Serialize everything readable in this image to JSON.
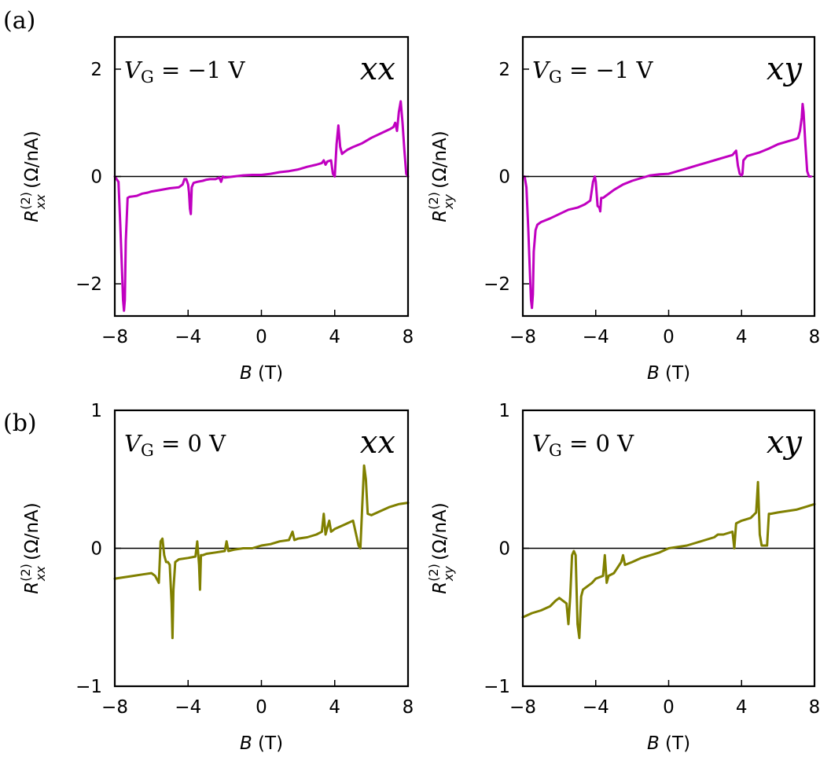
{
  "panel_labels": [
    "(a)",
    "(b)"
  ],
  "chart_data": [
    {
      "type": "line",
      "id": "a-xx",
      "row": "a",
      "component": "xx",
      "gate_label": "V_G = −1 V",
      "gate_symbol": "V",
      "gate_sub": "G",
      "gate_value": " = −1 V",
      "xlabel_var": "B",
      "xlabel_unit": " (T)",
      "ylabel_var": "R",
      "ylabel_sup": "(2)",
      "ylabel_sub": "xx",
      "ylabel_unit": " (Ω/nA)",
      "xlim": [
        -8,
        8
      ],
      "ylim": [
        -2.6,
        2.6
      ],
      "xticks": [
        -8,
        -4,
        0,
        4,
        8
      ],
      "xticklabels": [
        "−8",
        "−4",
        "0",
        "4",
        "8"
      ],
      "yticks": [
        -2,
        0,
        2
      ],
      "yticklabels": [
        "−2",
        "0",
        "2"
      ],
      "color": "#c000c0",
      "x": [
        -8,
        -7.8,
        -7.7,
        -7.6,
        -7.55,
        -7.5,
        -7.45,
        -7.4,
        -7.3,
        -7.2,
        -7,
        -6.8,
        -6.5,
        -6.2,
        -6,
        -5.5,
        -5,
        -4.5,
        -4.3,
        -4.2,
        -4.1,
        -4.0,
        -3.95,
        -3.9,
        -3.85,
        -3.8,
        -3.7,
        -3.5,
        -3.2,
        -3.0,
        -2.8,
        -2.5,
        -2.3,
        -2.2,
        -2.1,
        -2.0,
        -1.5,
        -1.0,
        -0.5,
        0,
        0.5,
        1.0,
        1.5,
        2.0,
        2.5,
        3.0,
        3.3,
        3.4,
        3.5,
        3.6,
        3.8,
        3.9,
        4.0,
        4.1,
        4.2,
        4.3,
        4.4,
        4.5,
        4.7,
        5.0,
        5.5,
        6.0,
        6.5,
        7.0,
        7.2,
        7.3,
        7.4,
        7.5,
        7.6,
        7.7,
        7.8,
        7.9,
        8.0
      ],
      "values": [
        0,
        -0.1,
        -0.9,
        -1.8,
        -2.3,
        -2.5,
        -2.3,
        -1.2,
        -0.4,
        -0.38,
        -0.37,
        -0.36,
        -0.32,
        -0.3,
        -0.28,
        -0.25,
        -0.22,
        -0.2,
        -0.15,
        -0.05,
        -0.05,
        -0.15,
        -0.3,
        -0.6,
        -0.7,
        -0.2,
        -0.12,
        -0.1,
        -0.08,
        -0.06,
        -0.05,
        -0.05,
        -0.02,
        -0.1,
        0.0,
        -0.02,
        0,
        0.02,
        0.03,
        0.03,
        0.05,
        0.08,
        0.1,
        0.13,
        0.18,
        0.22,
        0.25,
        0.3,
        0.22,
        0.28,
        0.3,
        0.05,
        0.0,
        0.6,
        0.95,
        0.55,
        0.42,
        0.45,
        0.5,
        0.55,
        0.62,
        0.72,
        0.8,
        0.88,
        0.92,
        1.0,
        0.85,
        1.2,
        1.4,
        1.0,
        0.5,
        0.05,
        0.0
      ]
    },
    {
      "type": "line",
      "id": "a-xy",
      "row": "a",
      "component": "xy",
      "gate_label": "V_G = −1 V",
      "gate_symbol": "V",
      "gate_sub": "G",
      "gate_value": " = −1 V",
      "xlabel_var": "B",
      "xlabel_unit": " (T)",
      "ylabel_var": "R",
      "ylabel_sup": "(2)",
      "ylabel_sub": "xy",
      "ylabel_unit": " (Ω/nA)",
      "xlim": [
        -8,
        8
      ],
      "ylim": [
        -2.6,
        2.6
      ],
      "xticks": [
        -8,
        -4,
        0,
        4,
        8
      ],
      "xticklabels": [
        "−8",
        "−4",
        "0",
        "4",
        "8"
      ],
      "yticks": [
        -2,
        0,
        2
      ],
      "yticklabels": [
        "−2",
        "0",
        "2"
      ],
      "color": "#c000c0",
      "x": [
        -7.9,
        -7.8,
        -7.7,
        -7.6,
        -7.55,
        -7.5,
        -7.45,
        -7.4,
        -7.3,
        -7.2,
        -7,
        -6.5,
        -6,
        -5.5,
        -5.0,
        -4.6,
        -4.3,
        -4.15,
        -4.05,
        -4.0,
        -3.9,
        -3.8,
        -3.75,
        -3.7,
        -3.6,
        -3.4,
        -3.0,
        -2.5,
        -2.0,
        -1.5,
        -1.0,
        -0.5,
        0,
        0.5,
        1.0,
        1.5,
        2.0,
        2.5,
        3.0,
        3.5,
        3.7,
        3.8,
        3.9,
        4.0,
        4.05,
        4.1,
        4.3,
        4.5,
        5.0,
        5.5,
        6.0,
        6.5,
        7.0,
        7.1,
        7.2,
        7.3,
        7.35,
        7.4,
        7.5,
        7.6,
        7.7,
        7.8
      ],
      "values": [
        0,
        -0.2,
        -1.0,
        -1.9,
        -2.3,
        -2.45,
        -2.2,
        -1.4,
        -1.0,
        -0.9,
        -0.85,
        -0.78,
        -0.7,
        -0.62,
        -0.58,
        -0.52,
        -0.45,
        -0.1,
        0.0,
        -0.1,
        -0.55,
        -0.58,
        -0.65,
        -0.4,
        -0.4,
        -0.35,
        -0.25,
        -0.15,
        -0.08,
        -0.03,
        0.02,
        0.04,
        0.05,
        0.1,
        0.15,
        0.2,
        0.25,
        0.3,
        0.35,
        0.4,
        0.48,
        0.2,
        0.05,
        0.02,
        0.05,
        0.3,
        0.38,
        0.4,
        0.45,
        0.52,
        0.6,
        0.65,
        0.7,
        0.72,
        0.85,
        1.1,
        1.35,
        1.2,
        0.6,
        0.1,
        0.0,
        0.0
      ]
    },
    {
      "type": "line",
      "id": "b-xx",
      "row": "b",
      "component": "xx",
      "gate_label": "V_G = 0 V",
      "gate_symbol": "V",
      "gate_sub": "G",
      "gate_value": " = 0 V",
      "xlabel_var": "B",
      "xlabel_unit": " (T)",
      "ylabel_var": "R",
      "ylabel_sup": "(2)",
      "ylabel_sub": "xx",
      "ylabel_unit": " (Ω/nA)",
      "xlim": [
        -8,
        8
      ],
      "ylim": [
        -1,
        1
      ],
      "xticks": [
        -8,
        -4,
        0,
        4,
        8
      ],
      "xticklabels": [
        "−8",
        "−4",
        "0",
        "4",
        "8"
      ],
      "yticks": [
        -1,
        0,
        1
      ],
      "yticklabels": [
        "−1",
        "0",
        "1"
      ],
      "color": "#808000",
      "x": [
        -8,
        -7.5,
        -7,
        -6.5,
        -6.0,
        -5.8,
        -5.6,
        -5.5,
        -5.4,
        -5.3,
        -5.2,
        -5.1,
        -5.0,
        -4.9,
        -4.85,
        -4.8,
        -4.7,
        -4.5,
        -4.0,
        -3.6,
        -3.5,
        -3.4,
        -3.35,
        -3.3,
        -3.2,
        -3.0,
        -2.5,
        -2.0,
        -1.9,
        -1.8,
        -1.5,
        -1.0,
        -0.5,
        0,
        0.5,
        1.0,
        1.5,
        1.7,
        1.8,
        2.0,
        2.5,
        3.0,
        3.3,
        3.4,
        3.5,
        3.6,
        3.7,
        3.8,
        4.0,
        4.5,
        5.0,
        5.3,
        5.4,
        5.5,
        5.6,
        5.7,
        5.8,
        6.0,
        6.5,
        7.0,
        7.5,
        8.0
      ],
      "values": [
        -0.22,
        -0.21,
        -0.2,
        -0.19,
        -0.18,
        -0.2,
        -0.25,
        0.05,
        0.07,
        -0.05,
        -0.1,
        -0.1,
        -0.12,
        -0.4,
        -0.65,
        -0.3,
        -0.1,
        -0.08,
        -0.07,
        -0.06,
        0.05,
        -0.12,
        -0.3,
        -0.05,
        -0.05,
        -0.04,
        -0.03,
        -0.02,
        0.05,
        -0.02,
        -0.01,
        0.0,
        0.0,
        0.02,
        0.03,
        0.05,
        0.06,
        0.12,
        0.06,
        0.07,
        0.08,
        0.1,
        0.12,
        0.25,
        0.1,
        0.15,
        0.2,
        0.12,
        0.14,
        0.17,
        0.2,
        0.02,
        0.0,
        0.3,
        0.6,
        0.5,
        0.25,
        0.24,
        0.27,
        0.3,
        0.32,
        0.33
      ]
    },
    {
      "type": "line",
      "id": "b-xy",
      "row": "b",
      "component": "xy",
      "gate_label": "V_G = 0 V",
      "gate_symbol": "V",
      "gate_sub": "G",
      "gate_value": " = 0 V",
      "xlabel_var": "B",
      "xlabel_unit": " (T)",
      "ylabel_var": "R",
      "ylabel_sup": "(2)",
      "ylabel_sub": "xy",
      "ylabel_unit": " (Ω/nA)",
      "xlim": [
        -8,
        8
      ],
      "ylim": [
        -1,
        1
      ],
      "xticks": [
        -8,
        -4,
        0,
        4,
        8
      ],
      "xticklabels": [
        "−8",
        "−4",
        "0",
        "4",
        "8"
      ],
      "yticks": [
        -1,
        0,
        1
      ],
      "yticklabels": [
        "−1",
        "0",
        "1"
      ],
      "color": "#808000",
      "x": [
        -8,
        -7.5,
        -7.0,
        -6.5,
        -6.2,
        -6.0,
        -5.8,
        -5.6,
        -5.5,
        -5.4,
        -5.3,
        -5.2,
        -5.1,
        -5.0,
        -4.9,
        -4.8,
        -4.7,
        -4.5,
        -4.2,
        -4.0,
        -3.6,
        -3.5,
        -3.4,
        -3.3,
        -3.0,
        -2.6,
        -2.5,
        -2.4,
        -2.0,
        -1.5,
        -1.0,
        -0.5,
        0,
        0.5,
        1.0,
        1.5,
        2.0,
        2.5,
        2.7,
        3.0,
        3.5,
        3.6,
        3.7,
        4.0,
        4.5,
        4.8,
        4.9,
        5.0,
        5.1,
        5.2,
        5.4,
        5.5,
        5.6,
        6.0,
        6.5,
        7.0,
        7.5,
        8.0
      ],
      "values": [
        -0.5,
        -0.47,
        -0.45,
        -0.42,
        -0.38,
        -0.36,
        -0.38,
        -0.4,
        -0.55,
        -0.35,
        -0.05,
        -0.02,
        -0.05,
        -0.55,
        -0.65,
        -0.35,
        -0.3,
        -0.28,
        -0.25,
        -0.22,
        -0.2,
        -0.05,
        -0.25,
        -0.2,
        -0.18,
        -0.1,
        -0.05,
        -0.12,
        -0.1,
        -0.07,
        -0.05,
        -0.03,
        0.0,
        0.01,
        0.02,
        0.04,
        0.06,
        0.08,
        0.1,
        0.1,
        0.12,
        0.0,
        0.18,
        0.2,
        0.22,
        0.26,
        0.48,
        0.1,
        0.02,
        0.02,
        0.02,
        0.25,
        0.25,
        0.26,
        0.27,
        0.28,
        0.3,
        0.32
      ]
    }
  ]
}
